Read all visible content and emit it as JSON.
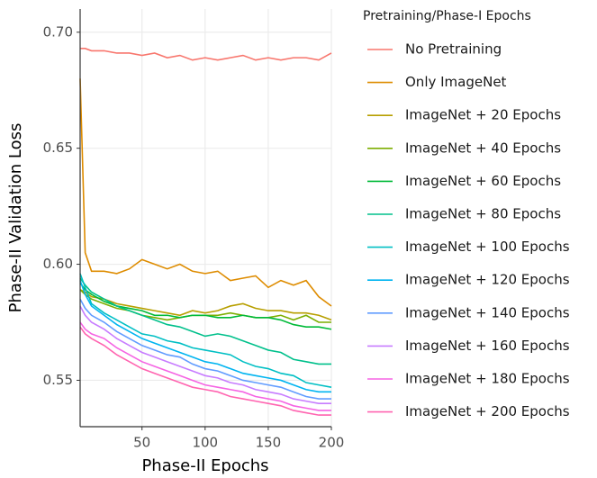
{
  "chart_data": {
    "type": "line",
    "x_label": "Phase-II Epochs",
    "y_label": "Phase-II Validation Loss",
    "legend_title": "Pretraining/Phase-I Epochs",
    "legend": "right",
    "grid": true,
    "xlim": [
      1,
      200
    ],
    "ylim": [
      0.53,
      0.71
    ],
    "xticks": [
      50,
      100,
      150,
      200
    ],
    "yticks": [
      {
        "value": 0.55,
        "label": "0.55"
      },
      {
        "value": 0.6,
        "label": "0.60"
      },
      {
        "value": 0.65,
        "label": "0.65"
      },
      {
        "value": 0.7,
        "label": "0.70"
      }
    ],
    "x": [
      1,
      5,
      10,
      20,
      30,
      40,
      50,
      60,
      70,
      80,
      90,
      100,
      110,
      120,
      130,
      140,
      150,
      160,
      170,
      180,
      190,
      200
    ],
    "series": [
      {
        "name": "No Pretraining",
        "color": "#F8766D",
        "values": [
          0.693,
          0.693,
          0.692,
          0.692,
          0.691,
          0.691,
          0.69,
          0.691,
          0.689,
          0.69,
          0.688,
          0.689,
          0.688,
          0.689,
          0.69,
          0.688,
          0.689,
          0.688,
          0.689,
          0.689,
          0.688,
          0.691
        ]
      },
      {
        "name": "Only ImageNet",
        "color": "#DE8C00",
        "values": [
          0.68,
          0.605,
          0.597,
          0.597,
          0.596,
          0.598,
          0.602,
          0.6,
          0.598,
          0.6,
          0.597,
          0.596,
          0.597,
          0.593,
          0.594,
          0.595,
          0.59,
          0.593,
          0.591,
          0.593,
          0.586,
          0.582
        ]
      },
      {
        "name": "ImageNet + 20 Epochs",
        "color": "#B79F00",
        "values": [
          0.589,
          0.588,
          0.586,
          0.585,
          0.583,
          0.582,
          0.581,
          0.58,
          0.579,
          0.578,
          0.58,
          0.579,
          0.58,
          0.582,
          0.583,
          0.581,
          0.58,
          0.58,
          0.579,
          0.579,
          0.578,
          0.576
        ]
      },
      {
        "name": "ImageNet + 40 Epochs",
        "color": "#7CAE00",
        "values": [
          0.589,
          0.587,
          0.585,
          0.583,
          0.581,
          0.58,
          0.578,
          0.577,
          0.576,
          0.577,
          0.578,
          0.578,
          0.578,
          0.579,
          0.578,
          0.577,
          0.577,
          0.578,
          0.576,
          0.578,
          0.575,
          0.575
        ]
      },
      {
        "name": "ImageNet + 60 Epochs",
        "color": "#00BA38",
        "values": [
          0.592,
          0.589,
          0.587,
          0.584,
          0.582,
          0.581,
          0.58,
          0.578,
          0.578,
          0.577,
          0.578,
          0.578,
          0.577,
          0.577,
          0.578,
          0.577,
          0.577,
          0.576,
          0.574,
          0.573,
          0.573,
          0.572
        ]
      },
      {
        "name": "ImageNet + 80 Epochs",
        "color": "#00C08B",
        "values": [
          0.594,
          0.591,
          0.588,
          0.585,
          0.582,
          0.58,
          0.578,
          0.576,
          0.574,
          0.573,
          0.571,
          0.569,
          0.57,
          0.569,
          0.567,
          0.565,
          0.563,
          0.562,
          0.559,
          0.558,
          0.557,
          0.557
        ]
      },
      {
        "name": "ImageNet + 100 Epochs",
        "color": "#00BFC4",
        "values": [
          0.596,
          0.59,
          0.583,
          0.579,
          0.576,
          0.573,
          0.57,
          0.569,
          0.567,
          0.566,
          0.564,
          0.563,
          0.562,
          0.561,
          0.558,
          0.556,
          0.555,
          0.553,
          0.552,
          0.549,
          0.548,
          0.547
        ]
      },
      {
        "name": "ImageNet + 120 Epochs",
        "color": "#00B4F0",
        "values": [
          0.593,
          0.587,
          0.582,
          0.578,
          0.574,
          0.571,
          0.568,
          0.566,
          0.564,
          0.562,
          0.56,
          0.558,
          0.557,
          0.555,
          0.553,
          0.552,
          0.551,
          0.55,
          0.548,
          0.546,
          0.545,
          0.545
        ]
      },
      {
        "name": "ImageNet + 140 Epochs",
        "color": "#619CFF",
        "values": [
          0.585,
          0.581,
          0.578,
          0.575,
          0.571,
          0.568,
          0.565,
          0.563,
          0.561,
          0.56,
          0.557,
          0.555,
          0.554,
          0.552,
          0.55,
          0.549,
          0.548,
          0.547,
          0.545,
          0.543,
          0.542,
          0.542
        ]
      },
      {
        "name": "ImageNet + 160 Epochs",
        "color": "#C77CFF",
        "values": [
          0.582,
          0.578,
          0.575,
          0.572,
          0.568,
          0.565,
          0.562,
          0.56,
          0.558,
          0.556,
          0.554,
          0.552,
          0.551,
          0.549,
          0.548,
          0.546,
          0.545,
          0.544,
          0.542,
          0.541,
          0.54,
          0.54
        ]
      },
      {
        "name": "ImageNet + 180 Epochs",
        "color": "#F564E3",
        "values": [
          0.575,
          0.572,
          0.57,
          0.568,
          0.564,
          0.561,
          0.558,
          0.556,
          0.554,
          0.552,
          0.55,
          0.548,
          0.547,
          0.546,
          0.545,
          0.543,
          0.542,
          0.541,
          0.539,
          0.538,
          0.537,
          0.537
        ]
      },
      {
        "name": "ImageNet + 200 Epochs",
        "color": "#FF64B0",
        "values": [
          0.573,
          0.57,
          0.568,
          0.565,
          0.561,
          0.558,
          0.555,
          0.553,
          0.551,
          0.549,
          0.547,
          0.546,
          0.545,
          0.543,
          0.542,
          0.541,
          0.54,
          0.539,
          0.537,
          0.536,
          0.535,
          0.535
        ]
      }
    ]
  }
}
